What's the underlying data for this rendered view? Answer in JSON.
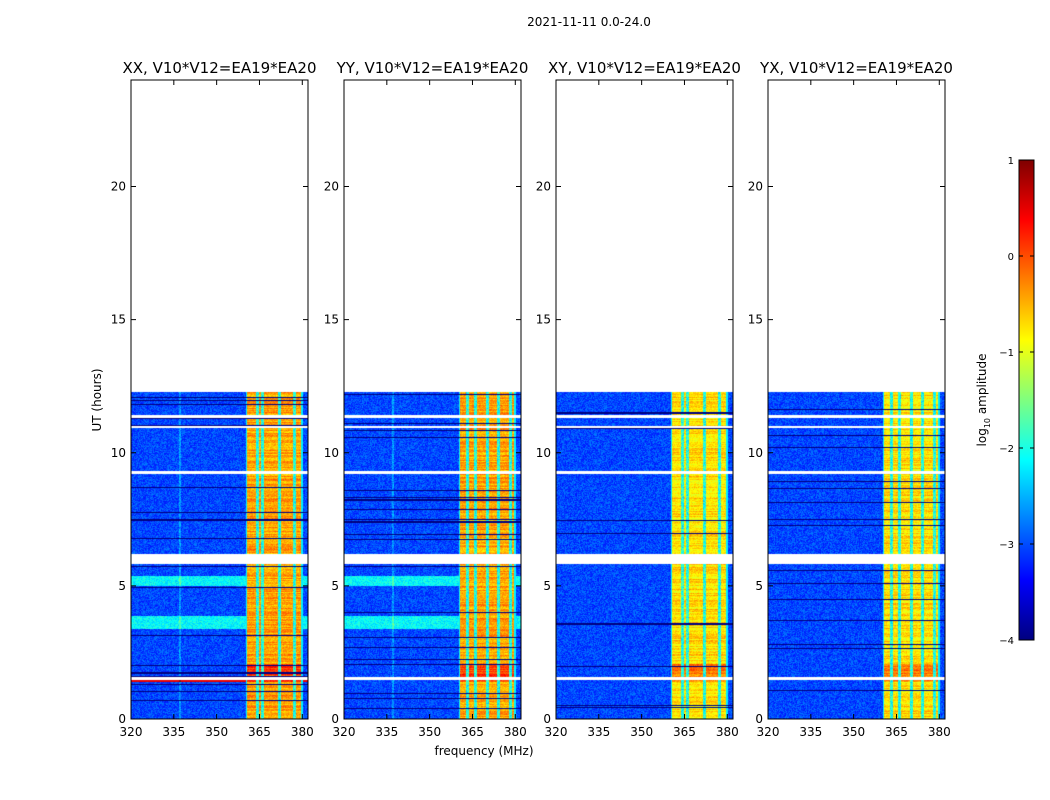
{
  "figure": {
    "suptitle": "2021-11-11 0.0-24.0",
    "xlabel": "frequency (MHz)",
    "ylabel": "UT (hours)"
  },
  "colorbar": {
    "label_main": "log",
    "label_sub": "10",
    "label_rest": " amplitude",
    "ticks": [
      1,
      0,
      -1,
      -2,
      -3,
      -4
    ],
    "tick_labels": [
      "1",
      "0",
      "−1",
      "−2",
      "−3",
      "−4"
    ],
    "range": [
      -4,
      1
    ],
    "colormap": "jet",
    "colors": [
      "#00007f",
      "#0000ff",
      "#007fff",
      "#00ffff",
      "#7fff7f",
      "#ffff00",
      "#ff7f00",
      "#ff0000",
      "#7f0000"
    ]
  },
  "chart_data": {
    "type": "heatmap",
    "x_range": [
      320,
      382
    ],
    "y_range": [
      0,
      24
    ],
    "x_ticks": [
      320,
      335,
      350,
      365,
      380
    ],
    "y_ticks": [
      0,
      5,
      10,
      15,
      20
    ],
    "data_extent_hours": [
      0,
      12.3
    ],
    "rfi_band_mhz": [
      360,
      380
    ],
    "panels": [
      {
        "title": "XX, V10*V12=EA19*EA20",
        "polarization": "XX"
      },
      {
        "title": "YY, V10*V12=EA19*EA20",
        "polarization": "YY"
      },
      {
        "title": "XY, V10*V12=EA19*EA20",
        "polarization": "XY"
      },
      {
        "title": "YX, V10*V12=EA19*EA20",
        "polarization": "YX"
      }
    ]
  }
}
